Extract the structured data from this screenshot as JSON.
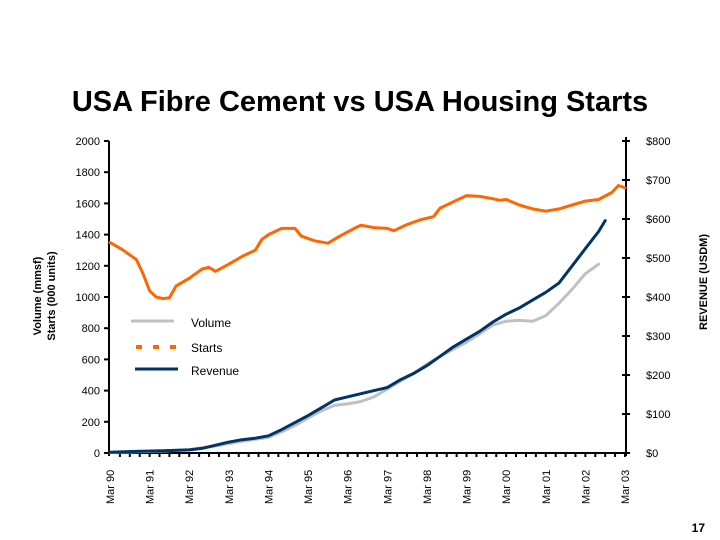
{
  "slide": {
    "page_number": "17"
  },
  "chart_data": {
    "type": "line",
    "title": "USA Fibre Cement  vs USA Housing Starts",
    "ylabel_left": [
      "Volume (mmsf)",
      "Starts (000 units)"
    ],
    "ylabel_right": "REVENUE (USDM)",
    "ylim_left": [
      0,
      2000
    ],
    "ylim_right": [
      0,
      800
    ],
    "yticks_left": [
      "0",
      "200",
      "400",
      "600",
      "800",
      "1000",
      "1200",
      "1400",
      "1600",
      "1800",
      "2000"
    ],
    "yticks_right": [
      "$0",
      "$100",
      "$200",
      "$300",
      "$400",
      "$500",
      "$600",
      "$700",
      "$800"
    ],
    "xticks": [
      "Mar 90",
      "Mar 91",
      "Mar 92",
      "Mar 93",
      "Mar 94",
      "Mar 95",
      "Mar 96",
      "Mar 97",
      "Mar 98",
      "Mar 99",
      "Mar 00",
      "Mar 01",
      "Mar 02",
      "Mar 03"
    ],
    "x_quarters": 52,
    "grid": false,
    "legend": {
      "position": "center-left"
    },
    "series": [
      {
        "name": "Volume",
        "axis": "left",
        "color": "#c0c0c0",
        "style": "solid",
        "points": [
          [
            0,
            3
          ],
          [
            4,
            8
          ],
          [
            8,
            12
          ],
          [
            12,
            22
          ],
          [
            16,
            45
          ],
          [
            20,
            75
          ],
          [
            24,
            100
          ],
          [
            26,
            135
          ],
          [
            28,
            175
          ],
          [
            30,
            225
          ],
          [
            32,
            270
          ],
          [
            34,
            305
          ],
          [
            36,
            315
          ],
          [
            38,
            330
          ],
          [
            40,
            360
          ],
          [
            42,
            410
          ],
          [
            44,
            460
          ],
          [
            46,
            510
          ],
          [
            48,
            570
          ],
          [
            50,
            620
          ],
          [
            52,
            665
          ],
          [
            54,
            710
          ],
          [
            56,
            765
          ],
          [
            58,
            820
          ],
          [
            60,
            845
          ],
          [
            62,
            850
          ],
          [
            64,
            845
          ],
          [
            66,
            880
          ],
          [
            68,
            960
          ],
          [
            70,
            1050
          ],
          [
            72,
            1150
          ],
          [
            74,
            1210
          ]
        ]
      },
      {
        "name": "Starts",
        "axis": "left",
        "color": "#ff6600",
        "style": "dashed",
        "points": [
          [
            0,
            1350
          ],
          [
            2,
            1300
          ],
          [
            4,
            1240
          ],
          [
            5,
            1150
          ],
          [
            6,
            1040
          ],
          [
            7,
            1000
          ],
          [
            8,
            990
          ],
          [
            9,
            995
          ],
          [
            10,
            1070
          ],
          [
            12,
            1120
          ],
          [
            14,
            1180
          ],
          [
            15,
            1190
          ],
          [
            16,
            1165
          ],
          [
            18,
            1210
          ],
          [
            20,
            1260
          ],
          [
            22,
            1300
          ],
          [
            23,
            1370
          ],
          [
            24,
            1400
          ],
          [
            26,
            1440
          ],
          [
            28,
            1440
          ],
          [
            29,
            1390
          ],
          [
            31,
            1360
          ],
          [
            33,
            1345
          ],
          [
            35,
            1395
          ],
          [
            37,
            1440
          ],
          [
            38,
            1460
          ],
          [
            40,
            1445
          ],
          [
            42,
            1440
          ],
          [
            43,
            1425
          ],
          [
            45,
            1465
          ],
          [
            47,
            1495
          ],
          [
            49,
            1515
          ],
          [
            50,
            1570
          ],
          [
            52,
            1610
          ],
          [
            54,
            1650
          ],
          [
            56,
            1645
          ],
          [
            58,
            1630
          ],
          [
            59,
            1620
          ],
          [
            60,
            1625
          ],
          [
            62,
            1590
          ],
          [
            64,
            1565
          ],
          [
            66,
            1550
          ],
          [
            68,
            1565
          ],
          [
            70,
            1590
          ],
          [
            72,
            1615
          ],
          [
            74,
            1625
          ],
          [
            76,
            1670
          ],
          [
            77,
            1715
          ],
          [
            78,
            1700
          ]
        ]
      },
      {
        "name": "Revenue",
        "axis": "left",
        "color": "#003366",
        "style": "solid",
        "points": [
          [
            0,
            5
          ],
          [
            4,
            10
          ],
          [
            8,
            15
          ],
          [
            12,
            20
          ],
          [
            14,
            30
          ],
          [
            16,
            50
          ],
          [
            18,
            70
          ],
          [
            20,
            85
          ],
          [
            22,
            95
          ],
          [
            24,
            110
          ],
          [
            26,
            150
          ],
          [
            28,
            195
          ],
          [
            30,
            240
          ],
          [
            32,
            290
          ],
          [
            34,
            340
          ],
          [
            36,
            360
          ],
          [
            38,
            380
          ],
          [
            40,
            400
          ],
          [
            42,
            420
          ],
          [
            44,
            470
          ],
          [
            46,
            510
          ],
          [
            48,
            560
          ],
          [
            50,
            620
          ],
          [
            52,
            680
          ],
          [
            54,
            730
          ],
          [
            56,
            780
          ],
          [
            58,
            840
          ],
          [
            60,
            890
          ],
          [
            62,
            930
          ],
          [
            64,
            980
          ],
          [
            66,
            1030
          ],
          [
            68,
            1090
          ],
          [
            70,
            1200
          ],
          [
            72,
            1310
          ],
          [
            74,
            1420
          ],
          [
            75,
            1490
          ]
        ]
      }
    ]
  }
}
